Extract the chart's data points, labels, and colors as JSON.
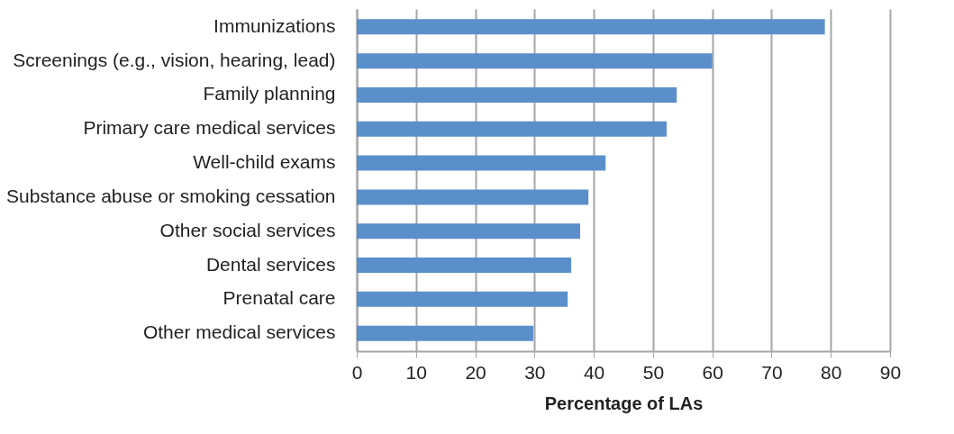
{
  "chart_data": {
    "type": "bar",
    "orientation": "horizontal",
    "xlabel": "Percentage of  LAs",
    "categories": [
      "Immunizations",
      "Screenings (e.g., vision, hearing, lead)",
      "Family planning",
      "Primary care medical services",
      "Well-child exams",
      "Substance abuse or smoking cessation",
      "Other social services",
      "Dental services",
      "Prenatal care",
      "Other medical services"
    ],
    "values": [
      79,
      60,
      54,
      52.3,
      42,
      39.1,
      37.7,
      36.2,
      35.6,
      29.8
    ],
    "color": "#5b8fcb",
    "xlim": [
      0,
      90
    ],
    "xticks": [
      0,
      10,
      20,
      30,
      40,
      50,
      60,
      70,
      80,
      90
    ],
    "grid": "x"
  }
}
